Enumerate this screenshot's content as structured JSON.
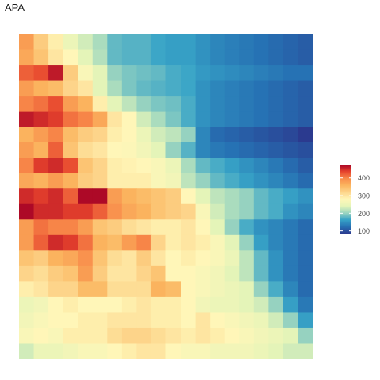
{
  "chart_data": {
    "type": "heatmap",
    "title": "APA",
    "xlabel": "",
    "ylabel": "",
    "legend": {
      "position": "right",
      "ticks": [
        100,
        200,
        300,
        400
      ],
      "range": [
        85,
        475
      ]
    },
    "rows": 21,
    "cols": 20,
    "values": [
      [
        380,
        330,
        290,
        250,
        230,
        210,
        180,
        175,
        175,
        165,
        160,
        160,
        150,
        140,
        135,
        130,
        125,
        120,
        115,
        110
      ],
      [
        370,
        340,
        300,
        280,
        240,
        215,
        180,
        175,
        175,
        165,
        160,
        160,
        150,
        140,
        135,
        130,
        125,
        120,
        115,
        110
      ],
      [
        420,
        430,
        460,
        330,
        270,
        240,
        200,
        190,
        185,
        180,
        170,
        165,
        155,
        150,
        145,
        140,
        135,
        130,
        125,
        125
      ],
      [
        380,
        360,
        350,
        320,
        300,
        240,
        210,
        190,
        180,
        175,
        170,
        165,
        150,
        140,
        135,
        130,
        125,
        120,
        115,
        110
      ],
      [
        400,
        410,
        430,
        380,
        360,
        290,
        240,
        220,
        200,
        190,
        185,
        170,
        150,
        140,
        135,
        130,
        125,
        120,
        115,
        110
      ],
      [
        460,
        450,
        440,
        410,
        400,
        370,
        300,
        280,
        230,
        210,
        190,
        170,
        150,
        140,
        135,
        130,
        125,
        120,
        115,
        110
      ],
      [
        360,
        380,
        400,
        350,
        330,
        320,
        290,
        280,
        250,
        230,
        220,
        200,
        140,
        120,
        115,
        110,
        105,
        100,
        95,
        85
      ],
      [
        380,
        360,
        420,
        340,
        310,
        300,
        280,
        275,
        260,
        240,
        200,
        175,
        140,
        130,
        125,
        120,
        115,
        110,
        105,
        100
      ],
      [
        400,
        440,
        450,
        430,
        340,
        320,
        290,
        285,
        280,
        270,
        250,
        210,
        180,
        170,
        160,
        150,
        140,
        130,
        120,
        110
      ],
      [
        370,
        360,
        380,
        360,
        330,
        320,
        290,
        290,
        290,
        270,
        260,
        220,
        200,
        180,
        170,
        160,
        150,
        140,
        130,
        120
      ],
      [
        450,
        440,
        450,
        420,
        470,
        470,
        380,
        360,
        350,
        340,
        330,
        280,
        240,
        220,
        210,
        200,
        180,
        170,
        160,
        150
      ],
      [
        470,
        450,
        450,
        440,
        440,
        420,
        390,
        370,
        360,
        340,
        330,
        320,
        270,
        230,
        210,
        200,
        180,
        170,
        150,
        140
      ],
      [
        380,
        410,
        400,
        400,
        380,
        340,
        330,
        310,
        300,
        290,
        290,
        300,
        280,
        240,
        200,
        170,
        150,
        140,
        130,
        120
      ],
      [
        380,
        420,
        450,
        440,
        410,
        360,
        350,
        380,
        400,
        320,
        290,
        300,
        290,
        270,
        240,
        200,
        160,
        140,
        130,
        120
      ],
      [
        340,
        330,
        360,
        370,
        390,
        340,
        310,
        300,
        330,
        300,
        280,
        290,
        280,
        270,
        250,
        220,
        180,
        150,
        130,
        120
      ],
      [
        320,
        310,
        330,
        340,
        380,
        330,
        300,
        300,
        320,
        340,
        280,
        280,
        270,
        260,
        240,
        220,
        180,
        150,
        130,
        120
      ],
      [
        290,
        300,
        320,
        320,
        350,
        350,
        310,
        310,
        310,
        360,
        350,
        280,
        270,
        260,
        250,
        240,
        200,
        170,
        140,
        120
      ],
      [
        250,
        260,
        280,
        290,
        280,
        280,
        280,
        290,
        300,
        290,
        290,
        280,
        260,
        250,
        250,
        240,
        230,
        200,
        160,
        130
      ],
      [
        260,
        270,
        280,
        280,
        290,
        290,
        300,
        300,
        300,
        290,
        290,
        280,
        300,
        280,
        270,
        260,
        250,
        230,
        200,
        160
      ],
      [
        270,
        280,
        270,
        290,
        290,
        290,
        310,
        320,
        320,
        310,
        300,
        290,
        300,
        290,
        280,
        270,
        260,
        250,
        240,
        200
      ],
      [
        230,
        250,
        250,
        260,
        270,
        270,
        280,
        290,
        300,
        300,
        280,
        270,
        270,
        260,
        260,
        260,
        250,
        240,
        230,
        230
      ]
    ]
  },
  "colors": {
    "scale_stops": [
      "#2b3a8f",
      "#2671b3",
      "#37a3c7",
      "#9bd5c0",
      "#e6f5b8",
      "#fff6b8",
      "#fdd58b",
      "#fbb55f",
      "#f88a4a",
      "#e6432d",
      "#a50026"
    ]
  }
}
